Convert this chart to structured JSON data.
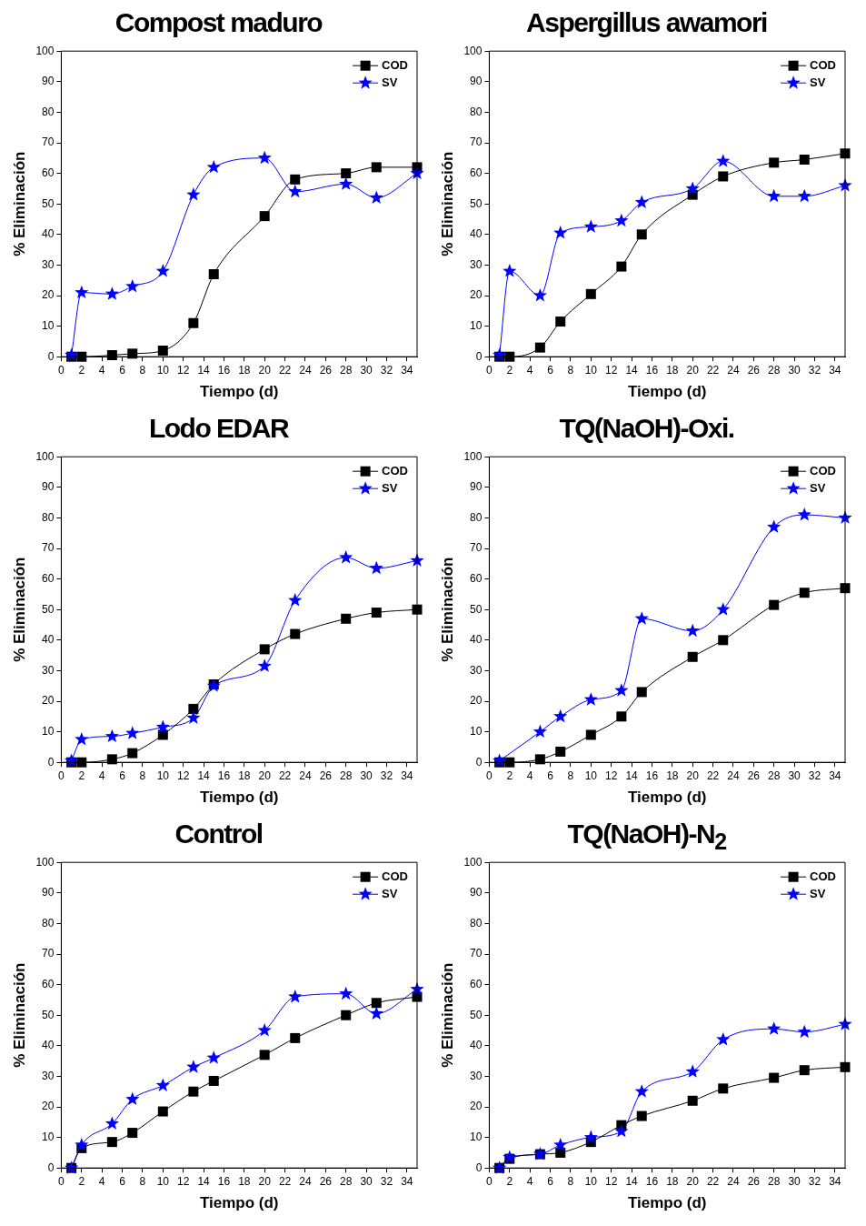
{
  "chart_data": [
    {
      "type": "line",
      "title": "Compost maduro",
      "xlabel": "Tiempo (d)",
      "ylabel": "% Eliminación",
      "x": [
        1,
        2,
        5,
        7,
        10,
        13,
        15,
        20,
        23,
        28,
        31,
        35
      ],
      "xlim": [
        0,
        35
      ],
      "xticks": [
        0,
        2,
        4,
        6,
        8,
        10,
        12,
        14,
        16,
        18,
        20,
        22,
        24,
        26,
        28,
        30,
        32,
        34
      ],
      "ylim": [
        0,
        100
      ],
      "yticks": [
        0,
        10,
        20,
        30,
        40,
        50,
        60,
        70,
        80,
        90,
        100
      ],
      "grid": false,
      "legend": "top right",
      "line_style": "solid",
      "series": [
        {
          "name": "COD",
          "color": "#000000",
          "marker": "square",
          "values": [
            0,
            0,
            0.5,
            1,
            2,
            11,
            27,
            46,
            58,
            60,
            62,
            62
          ]
        },
        {
          "name": "SV",
          "color": "#0000ff",
          "marker": "star",
          "values": [
            0.5,
            21,
            20.5,
            23,
            28,
            53,
            62,
            65,
            54,
            56.5,
            52,
            60
          ]
        }
      ]
    },
    {
      "type": "line",
      "title": "Aspergillus awamori",
      "xlabel": "Tiempo (d)",
      "ylabel": "% Eliminación",
      "x": [
        1,
        2,
        5,
        7,
        10,
        13,
        15,
        20,
        23,
        28,
        31,
        35
      ],
      "xlim": [
        0,
        35
      ],
      "xticks": [
        0,
        2,
        4,
        6,
        8,
        10,
        12,
        14,
        16,
        18,
        20,
        22,
        24,
        26,
        28,
        30,
        32,
        34
      ],
      "ylim": [
        0,
        100
      ],
      "yticks": [
        0,
        10,
        20,
        30,
        40,
        50,
        60,
        70,
        80,
        90,
        100
      ],
      "grid": false,
      "legend": "top right",
      "line_style": "solid",
      "series": [
        {
          "name": "COD",
          "color": "#000000",
          "marker": "square",
          "values": [
            0,
            0,
            3,
            11.5,
            20.5,
            29.5,
            40,
            53,
            59,
            63.5,
            64.5,
            66.5
          ]
        },
        {
          "name": "SV",
          "color": "#0000ff",
          "marker": "star",
          "values": [
            0.5,
            28,
            20,
            40.5,
            42.5,
            44.5,
            50.5,
            55,
            64,
            52.5,
            52.5,
            56
          ]
        }
      ]
    },
    {
      "type": "line",
      "title": "Lodo EDAR",
      "xlabel": "Tiempo (d)",
      "ylabel": "% Eliminación",
      "x": [
        1,
        2,
        5,
        7,
        10,
        13,
        15,
        20,
        23,
        28,
        31,
        35
      ],
      "xlim": [
        0,
        35
      ],
      "xticks": [
        0,
        2,
        4,
        6,
        8,
        10,
        12,
        14,
        16,
        18,
        20,
        22,
        24,
        26,
        28,
        30,
        32,
        34
      ],
      "ylim": [
        0,
        100
      ],
      "yticks": [
        0,
        10,
        20,
        30,
        40,
        50,
        60,
        70,
        80,
        90,
        100
      ],
      "grid": false,
      "legend": "top right",
      "line_style": "solid",
      "series": [
        {
          "name": "COD",
          "color": "#000000",
          "marker": "square",
          "values": [
            0,
            0,
            1,
            3,
            9,
            17.5,
            25.5,
            37,
            42,
            47,
            49,
            50
          ]
        },
        {
          "name": "SV",
          "color": "#0000ff",
          "marker": "star",
          "values": [
            0.5,
            7.5,
            8.5,
            9.5,
            11.5,
            14.5,
            25,
            31.5,
            53,
            67,
            63.5,
            66
          ]
        }
      ]
    },
    {
      "type": "line",
      "title": "TQ(NaOH)-Oxi.",
      "xlabel": "Tiempo (d)",
      "ylabel": "% Eliminación",
      "x": [
        1,
        2,
        5,
        7,
        10,
        13,
        15,
        20,
        23,
        28,
        31,
        35
      ],
      "xlim": [
        0,
        35
      ],
      "xticks": [
        0,
        2,
        4,
        6,
        8,
        10,
        12,
        14,
        16,
        18,
        20,
        22,
        24,
        26,
        28,
        30,
        32,
        34
      ],
      "ylim": [
        0,
        100
      ],
      "yticks": [
        0,
        10,
        20,
        30,
        40,
        50,
        60,
        70,
        80,
        90,
        100
      ],
      "grid": false,
      "legend": "top right",
      "line_style": "solid",
      "series": [
        {
          "name": "COD",
          "color": "#000000",
          "marker": "square",
          "values": [
            0,
            0,
            1,
            3.5,
            9,
            15,
            23,
            34.5,
            40,
            51.5,
            55.5,
            57
          ]
        },
        {
          "name": "SV",
          "color": "#0000ff",
          "marker": "star",
          "values": [
            0.5,
            null,
            10,
            15,
            20.5,
            23.5,
            47,
            43,
            50,
            77,
            81,
            80
          ]
        }
      ]
    },
    {
      "type": "line",
      "title": "Control",
      "xlabel": "Tiempo (d)",
      "ylabel": "% Eliminación",
      "x": [
        1,
        2,
        5,
        7,
        10,
        13,
        15,
        20,
        23,
        28,
        31,
        35
      ],
      "xlim": [
        0,
        35
      ],
      "xticks": [
        0,
        2,
        4,
        6,
        8,
        10,
        12,
        14,
        16,
        18,
        20,
        22,
        24,
        26,
        28,
        30,
        32,
        34
      ],
      "ylim": [
        0,
        100
      ],
      "yticks": [
        0,
        10,
        20,
        30,
        40,
        50,
        60,
        70,
        80,
        90,
        100
      ],
      "grid": false,
      "legend": "top right",
      "line_style": "solid",
      "series": [
        {
          "name": "COD",
          "color": "#000000",
          "marker": "square",
          "values": [
            0,
            6.5,
            8.5,
            11.5,
            18.5,
            25,
            28.5,
            37,
            42.5,
            50,
            54,
            56
          ]
        },
        {
          "name": "SV",
          "color": "#0000ff",
          "marker": "star",
          "values": [
            0,
            7.5,
            14.5,
            22.5,
            27,
            33,
            36,
            45,
            56,
            57,
            50.5,
            58.5
          ]
        }
      ]
    },
    {
      "type": "line",
      "title": "TQ(NaOH)-N$_{2}$",
      "xlabel": "Tiempo (d)",
      "ylabel": "% Eliminación",
      "x": [
        1,
        2,
        5,
        7,
        10,
        13,
        15,
        20,
        23,
        28,
        31,
        35
      ],
      "xlim": [
        0,
        35
      ],
      "xticks": [
        0,
        2,
        4,
        6,
        8,
        10,
        12,
        14,
        16,
        18,
        20,
        22,
        24,
        26,
        28,
        30,
        32,
        34
      ],
      "ylim": [
        0,
        100
      ],
      "yticks": [
        0,
        10,
        20,
        30,
        40,
        50,
        60,
        70,
        80,
        90,
        100
      ],
      "grid": false,
      "legend": "top right",
      "line_style": "solid",
      "series": [
        {
          "name": "COD",
          "color": "#000000",
          "marker": "square",
          "values": [
            0,
            3,
            4.5,
            5,
            8.5,
            14,
            17,
            22,
            26,
            29.5,
            32,
            33
          ]
        },
        {
          "name": "SV",
          "color": "#0000ff",
          "marker": "star",
          "values": [
            0,
            3.5,
            4.5,
            7.5,
            10,
            12,
            25,
            31.5,
            42,
            45.5,
            44.5,
            47
          ]
        }
      ]
    }
  ]
}
